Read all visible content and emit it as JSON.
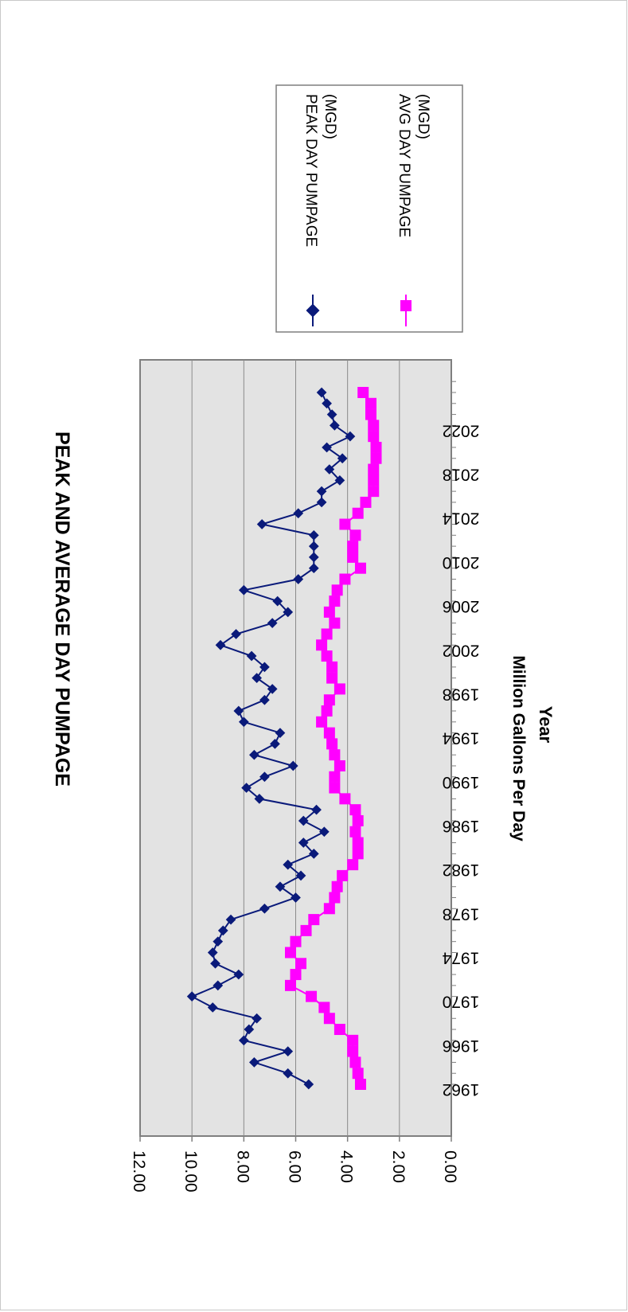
{
  "chart_data": {
    "type": "line",
    "title": "PEAK AND AVERAGE DAY PUMPAGE",
    "xlabel": "Year",
    "ylabel": "Million Gallons Per Day",
    "xlim": [
      1962,
      2026
    ],
    "ylim": [
      0,
      12
    ],
    "x_ticks": [
      "1962",
      "1966",
      "1970",
      "1974",
      "1978",
      "1982",
      "1986",
      "1990",
      "1994",
      "1998",
      "2002",
      "2006",
      "2010",
      "2014",
      "2018",
      "2022"
    ],
    "y_ticks": [
      "0.00",
      "2.00",
      "4.00",
      "6.00",
      "8.00",
      "10.00",
      "12.00"
    ],
    "grid": true,
    "orientation": "rotated 90 degrees clockwise",
    "legend_position": "top-right (rotated)",
    "series": [
      {
        "name": "PEAK DAY PUMPAGE (MGD)",
        "color": "#0a1a7a",
        "marker": "diamond",
        "x": [
          1962,
          1963,
          1964,
          1965,
          1966,
          1967,
          1968,
          1969,
          1970,
          1971,
          1972,
          1973,
          1974,
          1975,
          1976,
          1977,
          1978,
          1979,
          1980,
          1981,
          1982,
          1983,
          1984,
          1985,
          1986,
          1987,
          1988,
          1989,
          1990,
          1991,
          1992,
          1993,
          1994,
          1995,
          1996,
          1997,
          1998,
          1999,
          2000,
          2001,
          2002,
          2003,
          2004,
          2005,
          2006,
          2007,
          2008,
          2009,
          2010,
          2011,
          2012,
          2013,
          2014,
          2015,
          2016,
          2017,
          2018,
          2019,
          2020,
          2021,
          2022,
          2023,
          2024,
          2025
        ],
        "y": [
          5.5,
          6.3,
          7.6,
          6.3,
          8.0,
          7.8,
          7.5,
          9.2,
          10.0,
          9.0,
          8.2,
          9.1,
          9.2,
          9.0,
          8.8,
          8.5,
          7.2,
          6.0,
          6.6,
          5.8,
          6.3,
          5.3,
          5.7,
          4.9,
          5.7,
          5.2,
          7.4,
          7.9,
          7.2,
          6.1,
          7.6,
          6.8,
          6.6,
          8.0,
          8.2,
          7.2,
          6.9,
          7.5,
          7.2,
          7.7,
          8.9,
          8.3,
          6.9,
          6.3,
          6.7,
          8.0,
          5.9,
          5.3,
          5.3,
          5.3,
          5.3,
          7.3,
          5.9,
          5.0,
          5.0,
          4.3,
          4.7,
          4.2,
          4.8,
          3.9,
          4.5,
          4.6,
          4.8,
          5.0
        ]
      },
      {
        "name": "AVG DAY PUMPAGE (MGD)",
        "color": "#ff00ff",
        "marker": "square",
        "x": [
          1962,
          1963,
          1964,
          1965,
          1966,
          1967,
          1968,
          1969,
          1970,
          1971,
          1972,
          1973,
          1974,
          1975,
          1976,
          1977,
          1978,
          1979,
          1980,
          1981,
          1982,
          1983,
          1984,
          1985,
          1986,
          1987,
          1988,
          1989,
          1990,
          1991,
          1992,
          1993,
          1994,
          1995,
          1996,
          1997,
          1998,
          1999,
          2000,
          2001,
          2002,
          2003,
          2004,
          2005,
          2006,
          2007,
          2008,
          2009,
          2010,
          2011,
          2012,
          2013,
          2014,
          2015,
          2016,
          2017,
          2018,
          2019,
          2020,
          2021,
          2022,
          2023,
          2024,
          2025
        ],
        "y": [
          3.5,
          3.6,
          3.7,
          3.8,
          3.8,
          4.3,
          4.7,
          4.9,
          5.4,
          6.2,
          6.0,
          5.8,
          6.2,
          6.0,
          5.6,
          5.3,
          4.7,
          4.5,
          4.4,
          4.2,
          3.8,
          3.6,
          3.6,
          3.7,
          3.6,
          3.7,
          4.1,
          4.5,
          4.5,
          4.3,
          4.5,
          4.6,
          4.7,
          5.0,
          4.8,
          4.7,
          4.3,
          4.6,
          4.6,
          4.8,
          5.0,
          4.8,
          4.5,
          4.7,
          4.5,
          4.4,
          4.1,
          3.5,
          3.8,
          3.8,
          3.7,
          4.1,
          3.6,
          3.3,
          3.0,
          3.0,
          3.0,
          2.9,
          2.9,
          3.0,
          3.0,
          3.1,
          3.1,
          3.4
        ]
      }
    ]
  }
}
